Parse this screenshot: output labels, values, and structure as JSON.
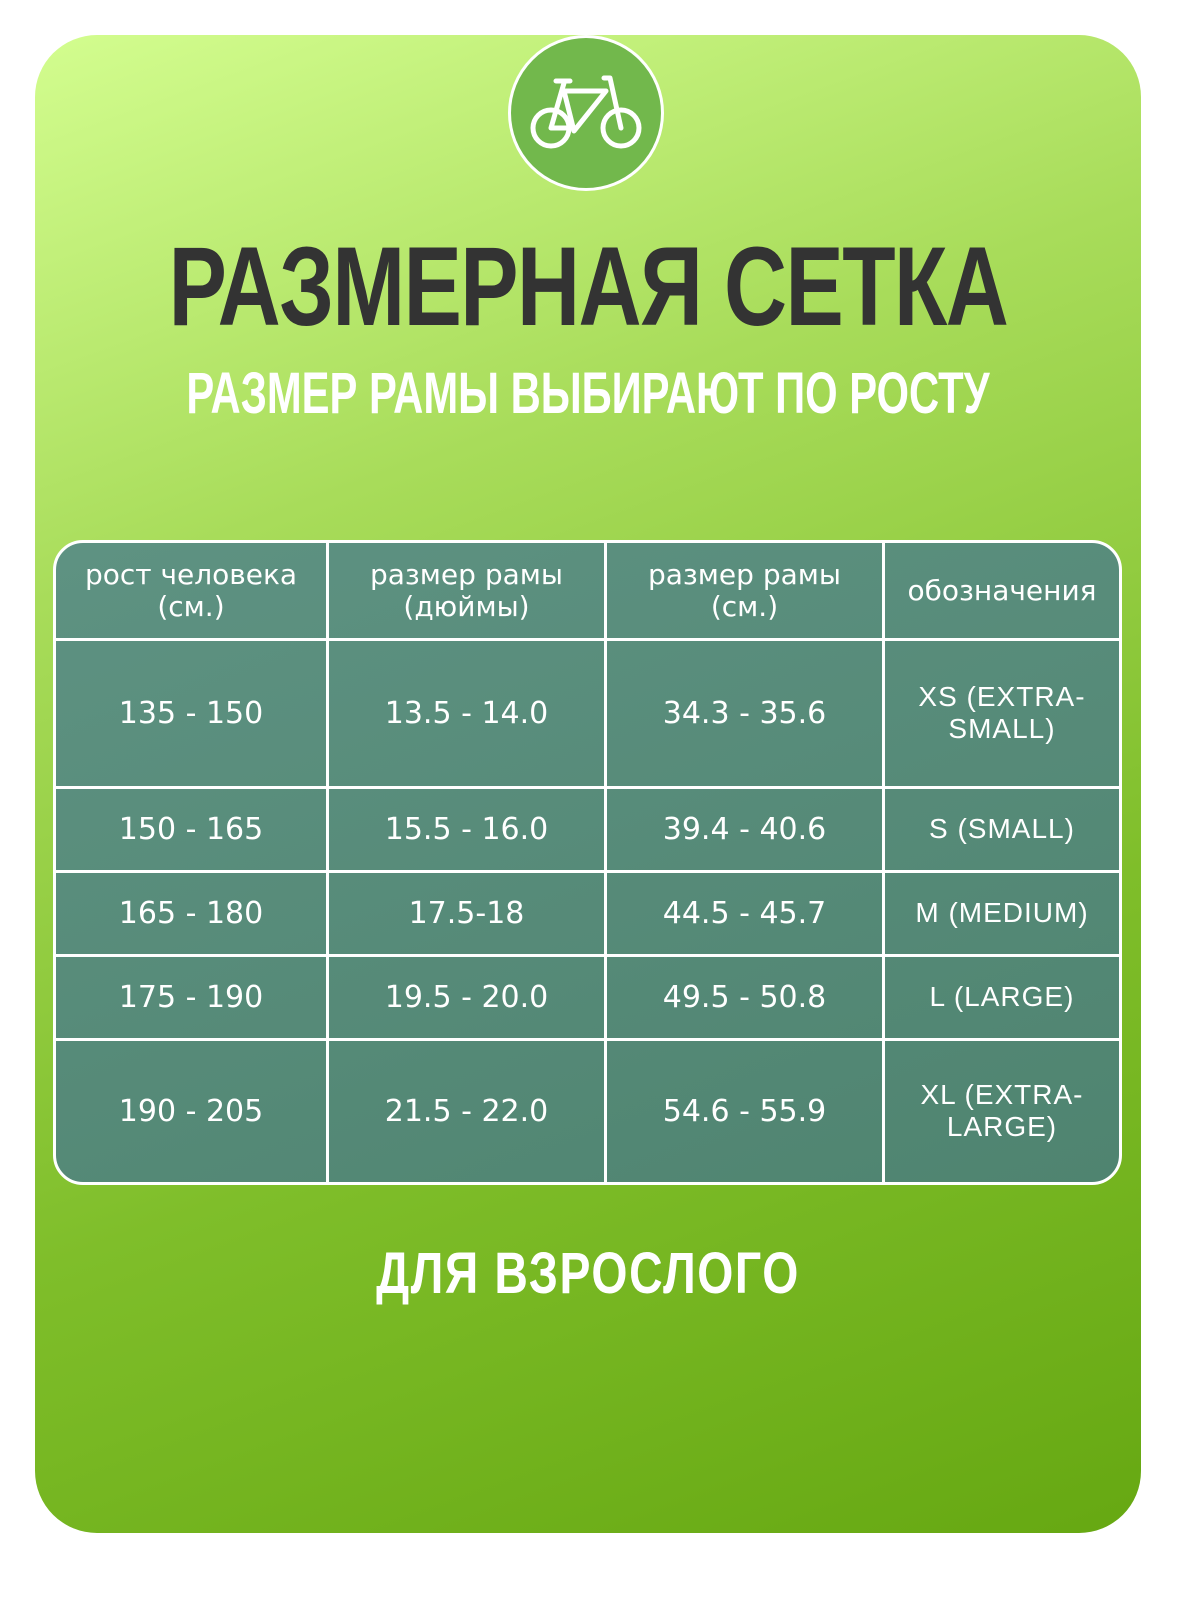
{
  "logo": {
    "icon": "bicycle-icon",
    "circle_color": "#72b84c"
  },
  "title": "РАЗМЕРНАЯ СЕТКА",
  "subtitle": "РАЗМЕР РАМЫ ВЫБИРАЮТ ПО РОСТУ",
  "table": {
    "headers": [
      {
        "line1": "рост человека",
        "line2": "(см.)"
      },
      {
        "line1": "размер рамы",
        "line2": "(дюймы)"
      },
      {
        "line1": "размер рамы",
        "line2": "(см.)"
      },
      {
        "line1": "обозначения",
        "line2": ""
      }
    ],
    "rows": [
      [
        "135 - 150",
        "13.5 - 14.0",
        "34.3 - 35.6",
        "XS (EXTRA-SMALL)"
      ],
      [
        "150 - 165",
        "15.5 - 16.0",
        "39.4 - 40.6",
        "S (SMALL)"
      ],
      [
        "165 - 180",
        "17.5-18",
        "44.5 - 45.7",
        "M (MEDIUM)"
      ],
      [
        "175 - 190",
        "19.5 - 20.0",
        "49.5 - 50.8",
        "L (LARGE)"
      ],
      [
        "190 - 205",
        "21.5 - 22.0",
        "54.6 - 55.9",
        "XL (EXTRA-LARGE)"
      ]
    ]
  },
  "footer": "ДЛЯ ВЗРОСЛОГО",
  "colors": {
    "background_light": "#d3fd8f",
    "background_dark": "#66a812",
    "table": "#548a78",
    "title": "#333333"
  }
}
